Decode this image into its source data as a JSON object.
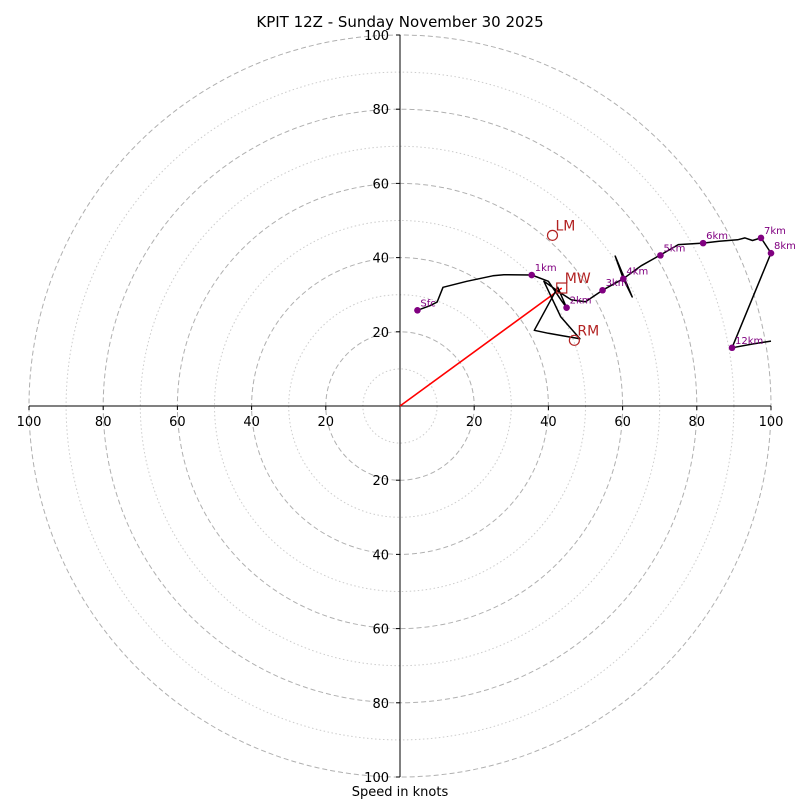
{
  "chart_data": {
    "type": "hodograph",
    "title": "KPIT 12Z - Sunday November 30 2025",
    "xlabel": "Speed in knots",
    "axis_range": [
      -100,
      100
    ],
    "ring_step_major": 20,
    "ring_step_minor": 10,
    "x_ticks": [
      {
        "value": -100,
        "label": "100"
      },
      {
        "value": -80,
        "label": "80"
      },
      {
        "value": -60,
        "label": "60"
      },
      {
        "value": -40,
        "label": "40"
      },
      {
        "value": -20,
        "label": "20"
      },
      {
        "value": 20,
        "label": "20"
      },
      {
        "value": 40,
        "label": "40"
      },
      {
        "value": 60,
        "label": "60"
      },
      {
        "value": 80,
        "label": "80"
      },
      {
        "value": 100,
        "label": "100"
      }
    ],
    "y_ticks": [
      {
        "value": 100,
        "label": "100"
      },
      {
        "value": 80,
        "label": "80"
      },
      {
        "value": 60,
        "label": "60"
      },
      {
        "value": 40,
        "label": "40"
      },
      {
        "value": 20,
        "label": "20"
      },
      {
        "value": -20,
        "label": "20"
      },
      {
        "value": -40,
        "label": "40"
      },
      {
        "value": -60,
        "label": "60"
      },
      {
        "value": -80,
        "label": "80"
      },
      {
        "value": -100,
        "label": "100"
      }
    ],
    "hodograph_trace": [
      [
        4.7,
        25.8
      ],
      [
        8,
        27
      ],
      [
        10,
        28
      ],
      [
        11.6,
        32
      ],
      [
        18,
        33.6
      ],
      [
        25,
        35.1
      ],
      [
        28,
        35.4
      ],
      [
        35.5,
        35.3
      ],
      [
        40,
        33.6
      ],
      [
        43.5,
        28.4
      ],
      [
        44.9,
        26.5
      ],
      [
        42.5,
        32
      ],
      [
        36.2,
        20.4
      ],
      [
        40,
        19.6
      ],
      [
        44,
        18.9
      ],
      [
        48.5,
        18.1
      ],
      [
        43.3,
        24.1
      ],
      [
        38.8,
        33.6
      ],
      [
        43.1,
        30.6
      ],
      [
        46.2,
        28.6
      ],
      [
        50,
        28.1
      ],
      [
        54.6,
        31.2
      ],
      [
        60.2,
        34.3
      ],
      [
        62.6,
        29.4
      ],
      [
        58,
        40.4
      ],
      [
        60.2,
        34.3
      ],
      [
        65,
        37.8
      ],
      [
        70,
        40.6
      ],
      [
        75,
        43.5
      ],
      [
        80,
        43.8
      ],
      [
        81.7,
        43.9
      ],
      [
        86,
        44.4
      ],
      [
        91,
        44.8
      ],
      [
        93,
        45.3
      ],
      [
        95,
        44.6
      ],
      [
        97.3,
        45.3
      ],
      [
        100,
        41.2
      ],
      [
        89.5,
        15.7
      ],
      [
        95,
        16.7
      ],
      [
        100,
        17.5
      ]
    ],
    "height_markers": [
      {
        "label": "Sfc",
        "u": 4.7,
        "v": 25.8
      },
      {
        "label": "1km",
        "u": 35.5,
        "v": 35.3
      },
      {
        "label": "2km",
        "u": 44.9,
        "v": 26.5
      },
      {
        "label": "3km",
        "u": 54.6,
        "v": 31.2
      },
      {
        "label": "4km",
        "u": 60.2,
        "v": 34.3
      },
      {
        "label": "5km",
        "u": 70.2,
        "v": 40.6
      },
      {
        "label": "6km",
        "u": 81.7,
        "v": 43.9
      },
      {
        "label": "7km",
        "u": 97.3,
        "v": 45.3
      },
      {
        "label": "8km",
        "u": 100,
        "v": 41.2
      },
      {
        "label": "12km",
        "u": 89.5,
        "v": 15.7
      }
    ],
    "storm_points": [
      {
        "label": "LM",
        "u": 41.1,
        "v": 46.0,
        "marker": "circle"
      },
      {
        "label": "MW",
        "u": 43.6,
        "v": 31.8,
        "marker": "square"
      },
      {
        "label": "RM",
        "u": 47.0,
        "v": 17.7,
        "marker": "circle"
      }
    ],
    "storm_vector": {
      "from": [
        0,
        0
      ],
      "to": [
        43.6,
        31.8
      ]
    },
    "colors": {
      "trace": "#000000",
      "height_marker": "#800080",
      "storm": "#b22222",
      "storm_vector": "#ff0000",
      "ring_major": "#b0b0b0",
      "ring_minor": "#cccccc"
    }
  }
}
